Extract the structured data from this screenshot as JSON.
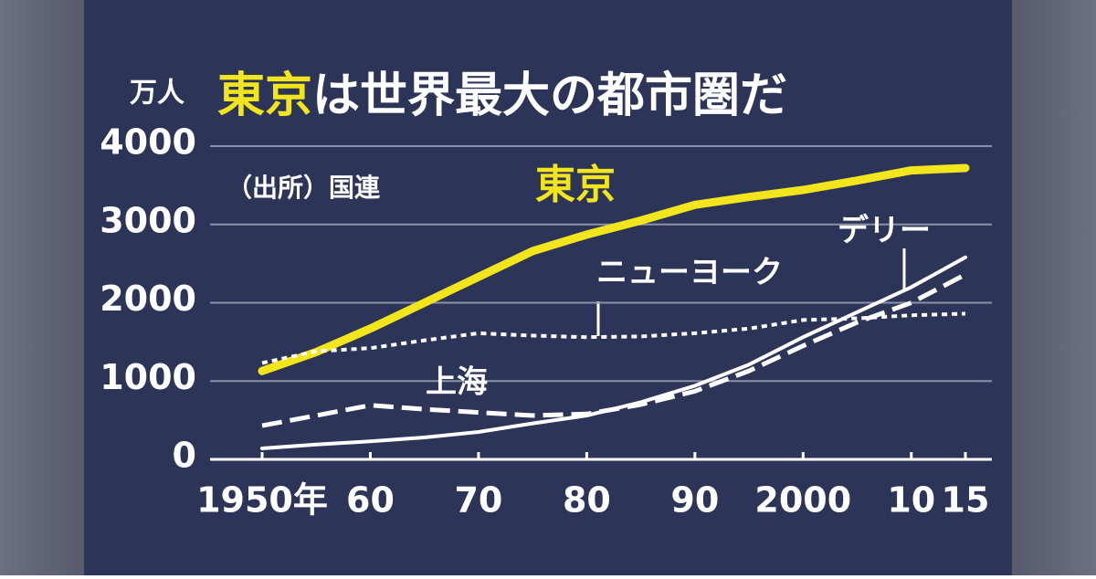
{
  "chart_data": {
    "type": "line",
    "title": [
      "東京",
      "は世界最大の都市圏だ"
    ],
    "title_colors": [
      "#f2e51c",
      "#ffffff"
    ],
    "y_unit": "万人",
    "source": "（出所）国連",
    "x": [
      1950,
      1955,
      1960,
      1965,
      1970,
      1975,
      1980,
      1985,
      1990,
      1995,
      2000,
      2005,
      2010,
      2015
    ],
    "xlim": [
      1950,
      2015
    ],
    "xticks": [
      {
        "value": 1950,
        "label": "1950年"
      },
      {
        "value": 1960,
        "label": "60"
      },
      {
        "value": 1970,
        "label": "70"
      },
      {
        "value": 1980,
        "label": "80"
      },
      {
        "value": 1990,
        "label": "90"
      },
      2000,
      {
        "value": 2010,
        "label": "10"
      },
      {
        "value": 2015,
        "label": "15"
      }
    ],
    "ylim": [
      0,
      4000
    ],
    "yticks": [
      0,
      1000,
      2000,
      3000,
      4000
    ],
    "grid": true,
    "series": [
      {
        "name": "東京",
        "color": "#f2e51c",
        "style": "solid-thick",
        "values": [
          1128,
          1370,
          1670,
          2000,
          2330,
          2660,
          2870,
          3050,
          3250,
          3350,
          3440,
          3560,
          3690,
          3720
        ]
      },
      {
        "name": "ニューヨーク",
        "color": "#ffffff",
        "style": "dotted",
        "values": [
          1230,
          1380,
          1420,
          1520,
          1610,
          1580,
          1560,
          1570,
          1610,
          1670,
          1780,
          1800,
          1840,
          1860
        ]
      },
      {
        "name": "デリー",
        "color": "#ffffff",
        "style": "solid",
        "values": [
          140,
          190,
          230,
          280,
          350,
          460,
          560,
          730,
          940,
          1210,
          1560,
          1880,
          2200,
          2580
        ]
      },
      {
        "name": "上海",
        "color": "#ffffff",
        "style": "dashed",
        "values": [
          430,
          560,
          690,
          640,
          600,
          560,
          580,
          700,
          870,
          1130,
          1450,
          1750,
          2000,
          2360
        ]
      }
    ]
  }
}
